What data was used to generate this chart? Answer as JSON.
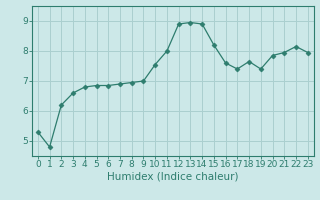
{
  "x": [
    0,
    1,
    2,
    3,
    4,
    5,
    6,
    7,
    8,
    9,
    10,
    11,
    12,
    13,
    14,
    15,
    16,
    17,
    18,
    19,
    20,
    21,
    22,
    23
  ],
  "y": [
    5.3,
    4.8,
    6.2,
    6.6,
    6.8,
    6.85,
    6.85,
    6.9,
    6.95,
    7.0,
    7.55,
    8.0,
    8.9,
    8.95,
    8.9,
    8.2,
    7.6,
    7.4,
    7.65,
    7.4,
    7.85,
    7.95,
    8.15,
    7.95
  ],
  "line_color": "#2e7d6e",
  "marker": "D",
  "marker_size": 2.5,
  "bg_color": "#cce8e8",
  "grid_color": "#aacfcf",
  "axis_color": "#2e7d6e",
  "xlabel": "Humidex (Indice chaleur)",
  "ylim": [
    4.5,
    9.5
  ],
  "xlim": [
    -0.5,
    23.5
  ],
  "yticks": [
    5,
    6,
    7,
    8,
    9
  ],
  "xticks": [
    0,
    1,
    2,
    3,
    4,
    5,
    6,
    7,
    8,
    9,
    10,
    11,
    12,
    13,
    14,
    15,
    16,
    17,
    18,
    19,
    20,
    21,
    22,
    23
  ],
  "xlabel_fontsize": 7.5,
  "tick_fontsize": 6.5
}
